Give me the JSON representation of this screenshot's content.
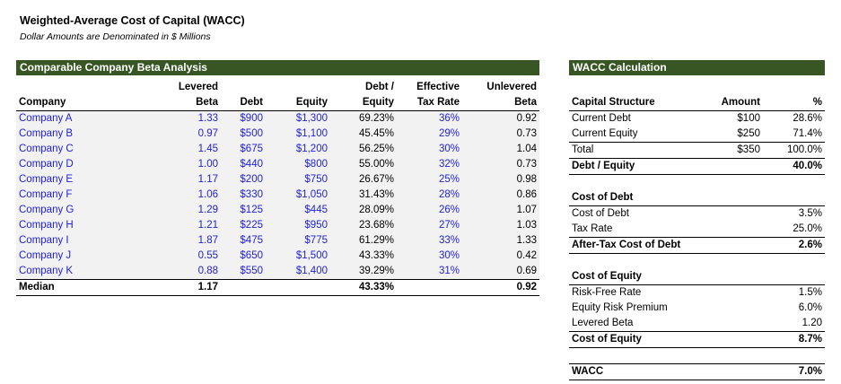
{
  "header": {
    "title": "Weighted-Average Cost of Capital (WACC)",
    "subtitle": "Dollar Amounts are Denominated in $ Millions"
  },
  "comparables": {
    "section_title": "Comparable Company Beta Analysis",
    "headers_top": [
      "",
      "Levered",
      "",
      "",
      "Debt /",
      "Effective",
      "Unlevered"
    ],
    "headers_bottom": [
      "Company",
      "Beta",
      "Debt",
      "Equity",
      "Equity",
      "Tax Rate",
      "Beta"
    ],
    "rows": [
      [
        "Company A",
        "1.33",
        "$900",
        "$1,300",
        "69.23%",
        "36%",
        "0.92"
      ],
      [
        "Company B",
        "0.97",
        "$500",
        "$1,100",
        "45.45%",
        "29%",
        "0.73"
      ],
      [
        "Company C",
        "1.45",
        "$675",
        "$1,200",
        "56.25%",
        "30%",
        "1.04"
      ],
      [
        "Company D",
        "1.00",
        "$440",
        "$800",
        "55.00%",
        "32%",
        "0.73"
      ],
      [
        "Company E",
        "1.17",
        "$200",
        "$750",
        "26.67%",
        "25%",
        "0.98"
      ],
      [
        "Company F",
        "1.06",
        "$330",
        "$1,050",
        "31.43%",
        "28%",
        "0.86"
      ],
      [
        "Company G",
        "1.29",
        "$125",
        "$445",
        "28.09%",
        "26%",
        "1.07"
      ],
      [
        "Company H",
        "1.21",
        "$225",
        "$950",
        "23.68%",
        "27%",
        "1.03"
      ],
      [
        "Company I",
        "1.87",
        "$475",
        "$775",
        "61.29%",
        "33%",
        "1.33"
      ],
      [
        "Company J",
        "0.55",
        "$650",
        "$1,500",
        "43.33%",
        "30%",
        "0.42"
      ],
      [
        "Company K",
        "0.88",
        "$550",
        "$1,400",
        "39.29%",
        "31%",
        "0.69"
      ]
    ],
    "median": [
      "Median",
      "1.17",
      "",
      "",
      "43.33%",
      "",
      "0.92"
    ]
  },
  "wacc": {
    "section_title": "WACC Calculation",
    "capital_structure": {
      "headers": [
        "Capital Structure",
        "Amount",
        "%"
      ],
      "rows": [
        [
          "Current Debt",
          "$100",
          "28.6%"
        ],
        [
          "Current Equity",
          "$250",
          "71.4%"
        ],
        [
          "Total",
          "$350",
          "100.0%"
        ]
      ],
      "debt_equity_label": "Debt / Equity",
      "debt_equity_value": "40.0%"
    },
    "cost_of_debt": {
      "heading": "Cost of Debt",
      "rows": [
        [
          "Cost of Debt",
          "3.5%"
        ],
        [
          "Tax Rate",
          "25.0%"
        ]
      ],
      "result_label": "After-Tax Cost of Debt",
      "result_value": "2.6%"
    },
    "cost_of_equity": {
      "heading": "Cost of Equity",
      "rows": [
        [
          "Risk-Free Rate",
          "1.5%"
        ],
        [
          "Equity Risk Premium",
          "6.0%"
        ],
        [
          "Levered Beta",
          "1.20"
        ]
      ],
      "result_label": "Cost of Equity",
      "result_value": "8.7%"
    },
    "final_label": "WACC",
    "final_value": "7.0%"
  },
  "colors": {
    "section_bar": "#375623",
    "input_blue": "#1f1fd6",
    "row_shade": "#f2f2f2"
  }
}
